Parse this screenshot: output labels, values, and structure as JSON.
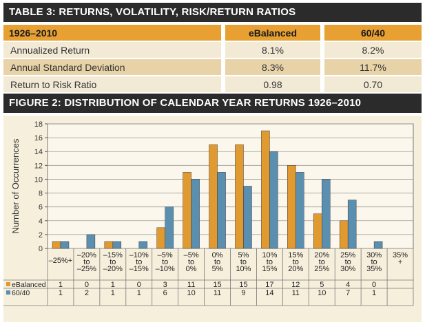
{
  "table": {
    "title": "TABLE 3: RETURNS, VOLATILITY, RISK/RETURN RATIOS",
    "header": [
      "1926–2010",
      "eBalanced",
      "60/40"
    ],
    "rows": [
      [
        "Annualized Return",
        "8.1%",
        "8.2%"
      ],
      [
        "Annual Standard Deviation",
        "8.3%",
        "11.7%"
      ],
      [
        "Return to Risk Ratio",
        "0.98",
        "0.70"
      ]
    ]
  },
  "figure_title": "FIGURE 2: DISTRIBUTION OF CALENDAR YEAR RETURNS 1926–2010",
  "colors": {
    "ebalanced": "#e09a30",
    "sixty_forty": "#5b8fb0",
    "title_bg": "#2b2b2b",
    "header_bg": "#e8a032"
  },
  "chart_data": {
    "type": "bar",
    "title": "FIGURE 2: DISTRIBUTION OF CALENDAR YEAR RETURNS 1926–2010",
    "xlabel": "",
    "ylabel": "Number of Occurrences",
    "ylim": [
      0,
      18
    ],
    "yticks": [
      0,
      2,
      4,
      6,
      8,
      10,
      12,
      14,
      16,
      18
    ],
    "grid": true,
    "categories": [
      [
        "–25%+"
      ],
      [
        "–20%",
        "to",
        "–25%"
      ],
      [
        "–15%",
        "to",
        "–20%"
      ],
      [
        "–10%",
        "to",
        "–15%"
      ],
      [
        "–5%",
        "to",
        "–10%"
      ],
      [
        "–5%",
        "to",
        "0%"
      ],
      [
        "0%",
        "to",
        "5%"
      ],
      [
        "5%",
        "to",
        "10%"
      ],
      [
        "10%",
        "to",
        "15%"
      ],
      [
        "15%",
        "to",
        "20%"
      ],
      [
        "20%",
        "to",
        "25%"
      ],
      [
        "25%",
        "to",
        "30%"
      ],
      [
        "30%",
        "to",
        "35%"
      ],
      [
        "35%",
        "+"
      ]
    ],
    "series": [
      {
        "name": "eBalanced",
        "values": [
          1,
          0,
          1,
          0,
          3,
          11,
          15,
          15,
          17,
          12,
          5,
          4,
          0,
          null
        ],
        "labels": [
          "1",
          "0",
          "1",
          "0",
          "3",
          "11",
          "15",
          "15",
          "17",
          "12",
          "5",
          "4",
          "0",
          ""
        ]
      },
      {
        "name": "60/40",
        "values": [
          1,
          2,
          1,
          1,
          6,
          10,
          11,
          9,
          14,
          11,
          10,
          7,
          1,
          null
        ],
        "labels": [
          "1",
          "2",
          "1",
          "1",
          "6",
          "10",
          "11",
          "9",
          "14",
          "11",
          "10",
          "7",
          "1",
          ""
        ]
      }
    ]
  }
}
